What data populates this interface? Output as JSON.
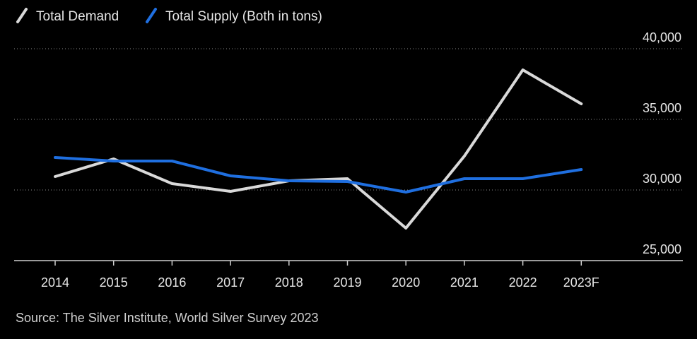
{
  "chart_data": {
    "type": "line",
    "categories": [
      "2014",
      "2015",
      "2016",
      "2017",
      "2018",
      "2019",
      "2020",
      "2021",
      "2022",
      "2023F"
    ],
    "series": [
      {
        "name": "Total Demand",
        "color": "#d9d9d9",
        "values": [
          30950,
          32200,
          30450,
          29900,
          30650,
          30800,
          27300,
          32400,
          38500,
          36100
        ]
      },
      {
        "name": "Total Supply (Both in tons)",
        "color": "#1f6fe0",
        "values": [
          32300,
          32050,
          32050,
          31000,
          30650,
          30600,
          29850,
          30800,
          30800,
          31450
        ]
      }
    ],
    "y_ticks": [
      "40,000",
      "35,000",
      "30,000",
      "25,000"
    ],
    "y_tick_values": [
      40000,
      35000,
      30000,
      25000
    ],
    "ylim": [
      25000,
      40000
    ],
    "grid": true,
    "legend_position": "top-left",
    "source": "Source: The Silver Institute, World Silver Survey 2023",
    "title": "",
    "xlabel": "",
    "ylabel": ""
  }
}
